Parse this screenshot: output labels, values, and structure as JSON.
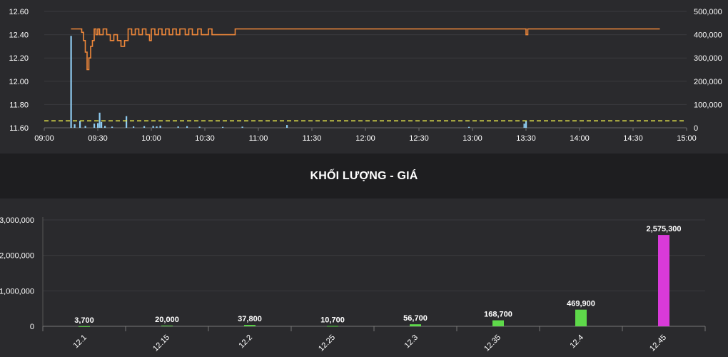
{
  "section_title": "KHỐI LƯỢNG - GIÁ",
  "chart_data": [
    {
      "type": "line",
      "x_labels": [
        "09:00",
        "09:30",
        "10:00",
        "10:30",
        "11:00",
        "11:30",
        "12:00",
        "12:30",
        "13:00",
        "13:30",
        "14:00",
        "14:30",
        "15:00"
      ],
      "y_ticks": [
        "11.60",
        "11.80",
        "12.00",
        "12.20",
        "12.40",
        "12.60"
      ],
      "y2_ticks": [
        "0",
        "100,000",
        "200,000",
        "300,000",
        "400,000",
        "500,000"
      ],
      "ylim": [
        11.6,
        12.6
      ],
      "y2lim": [
        0,
        500000
      ],
      "reference_line": 11.66,
      "grid": true,
      "colors": {
        "price": "#f0883a",
        "volume": "#8ecbf0",
        "reference": "#e8e84a"
      },
      "series": [
        {
          "kind": "price_line",
          "points": [
            [
              "09:15",
              12.45
            ],
            [
              "09:20",
              12.45
            ],
            [
              "09:21",
              12.42
            ],
            [
              "09:22",
              12.35
            ],
            [
              "09:23",
              12.25
            ],
            [
              "09:24",
              12.1
            ],
            [
              "09:25",
              12.2
            ],
            [
              "09:26",
              12.3
            ],
            [
              "09:27",
              12.35
            ],
            [
              "09:28",
              12.45
            ],
            [
              "09:29",
              12.4
            ],
            [
              "09:30",
              12.45
            ],
            [
              "09:31",
              12.4
            ],
            [
              "09:33",
              12.45
            ],
            [
              "09:35",
              12.4
            ],
            [
              "09:37",
              12.35
            ],
            [
              "09:39",
              12.4
            ],
            [
              "09:41",
              12.35
            ],
            [
              "09:43",
              12.3
            ],
            [
              "09:45",
              12.35
            ],
            [
              "09:47",
              12.45
            ],
            [
              "09:49",
              12.4
            ],
            [
              "09:51",
              12.45
            ],
            [
              "09:53",
              12.4
            ],
            [
              "09:55",
              12.45
            ],
            [
              "09:57",
              12.4
            ],
            [
              "09:59",
              12.35
            ],
            [
              "10:00",
              12.45
            ],
            [
              "10:02",
              12.4
            ],
            [
              "10:04",
              12.45
            ],
            [
              "10:06",
              12.4
            ],
            [
              "10:08",
              12.45
            ],
            [
              "10:10",
              12.4
            ],
            [
              "10:12",
              12.45
            ],
            [
              "10:14",
              12.4
            ],
            [
              "10:16",
              12.45
            ],
            [
              "10:19",
              12.4
            ],
            [
              "10:21",
              12.45
            ],
            [
              "10:23",
              12.4
            ],
            [
              "10:26",
              12.45
            ],
            [
              "10:28",
              12.4
            ],
            [
              "10:30",
              12.4
            ],
            [
              "10:32",
              12.45
            ],
            [
              "10:34",
              12.4
            ],
            [
              "10:36",
              12.4
            ],
            [
              "10:40",
              12.4
            ],
            [
              "10:44",
              12.4
            ],
            [
              "10:47",
              12.45
            ],
            [
              "13:29",
              12.45
            ],
            [
              "13:30",
              12.4
            ],
            [
              "13:31",
              12.45
            ],
            [
              "14:45",
              12.45
            ]
          ]
        },
        {
          "kind": "volume_bars",
          "points": [
            [
              "09:15",
              395000
            ],
            [
              "09:17",
              15000
            ],
            [
              "09:20",
              30000
            ],
            [
              "09:23",
              8000
            ],
            [
              "09:28",
              18000
            ],
            [
              "09:30",
              20000
            ],
            [
              "09:31",
              65000
            ],
            [
              "09:32",
              25000
            ],
            [
              "09:34",
              8000
            ],
            [
              "09:38",
              5000
            ],
            [
              "09:46",
              50000
            ],
            [
              "09:50",
              6000
            ],
            [
              "09:56",
              7000
            ],
            [
              "10:01",
              8000
            ],
            [
              "10:03",
              6000
            ],
            [
              "10:05",
              9000
            ],
            [
              "10:15",
              6000
            ],
            [
              "10:20",
              7000
            ],
            [
              "10:27",
              5000
            ],
            [
              "10:40",
              4000
            ],
            [
              "10:51",
              5000
            ],
            [
              "11:16",
              12000
            ],
            [
              "12:58",
              4000
            ],
            [
              "13:29",
              18000
            ],
            [
              "13:30",
              30000
            ]
          ]
        }
      ]
    },
    {
      "type": "bar",
      "categories": [
        "12.1",
        "12.15",
        "12.2",
        "12.25",
        "12.3",
        "12.35",
        "12.4",
        "12.45"
      ],
      "values": [
        3700,
        20000,
        37800,
        10700,
        56700,
        168700,
        469900,
        2575300
      ],
      "value_labels": [
        "3,700",
        "20,000",
        "37,800",
        "10,700",
        "56,700",
        "168,700",
        "469,900",
        "2,575,300"
      ],
      "y_ticks": [
        "0",
        "1,000,000",
        "2,000,000",
        "3,000,000"
      ],
      "ylim": [
        0,
        3000000
      ],
      "grid": true,
      "colors": {
        "normal": "#5ed94a",
        "highlight": "#d93ad9"
      },
      "highlight_index": 7
    }
  ]
}
